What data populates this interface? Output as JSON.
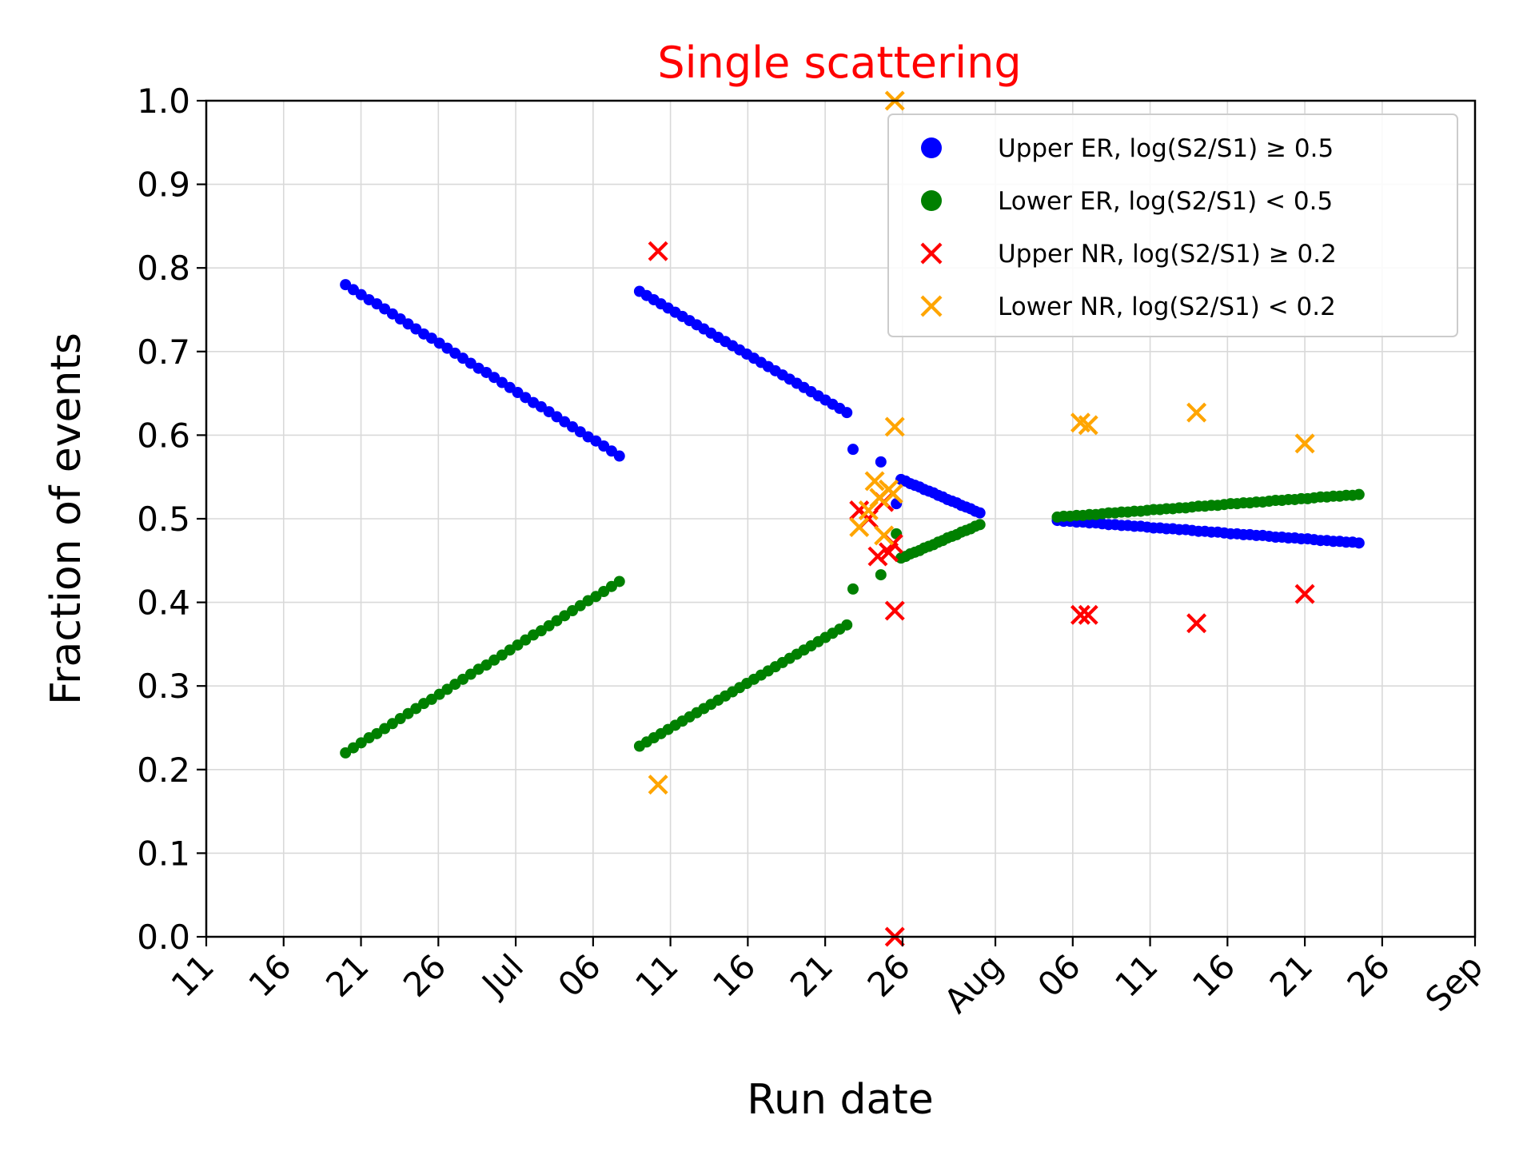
{
  "chart_data": {
    "type": "scatter",
    "title": "Single scattering",
    "title_color": "#ff0000",
    "xlabel": "Run date",
    "ylabel": "Fraction of events",
    "xlim": [
      "2025-06-11",
      "2025-09-01"
    ],
    "ylim": [
      0,
      1
    ],
    "grid": true,
    "legend_position": "top-right",
    "x_ticks": [
      {
        "date": "2025-06-11",
        "label": "11"
      },
      {
        "date": "2025-06-16",
        "label": "16"
      },
      {
        "date": "2025-06-21",
        "label": "21"
      },
      {
        "date": "2025-06-26",
        "label": "26"
      },
      {
        "date": "2025-07-01",
        "label": "Jul"
      },
      {
        "date": "2025-07-06",
        "label": "06"
      },
      {
        "date": "2025-07-11",
        "label": "11"
      },
      {
        "date": "2025-07-16",
        "label": "16"
      },
      {
        "date": "2025-07-21",
        "label": "21"
      },
      {
        "date": "2025-07-26",
        "label": "26"
      },
      {
        "date": "2025-08-01",
        "label": "Aug"
      },
      {
        "date": "2025-08-06",
        "label": "06"
      },
      {
        "date": "2025-08-11",
        "label": "11"
      },
      {
        "date": "2025-08-16",
        "label": "16"
      },
      {
        "date": "2025-08-21",
        "label": "21"
      },
      {
        "date": "2025-08-26",
        "label": "26"
      },
      {
        "date": "2025-09-01",
        "label": "Sep"
      }
    ],
    "y_ticks": [
      {
        "value": 0.0,
        "label": "0.0"
      },
      {
        "value": 0.1,
        "label": "0.1"
      },
      {
        "value": 0.2,
        "label": "0.2"
      },
      {
        "value": 0.3,
        "label": "0.3"
      },
      {
        "value": 0.4,
        "label": "0.4"
      },
      {
        "value": 0.5,
        "label": "0.5"
      },
      {
        "value": 0.6,
        "label": "0.6"
      },
      {
        "value": 0.7,
        "label": "0.7"
      },
      {
        "value": 0.8,
        "label": "0.8"
      },
      {
        "value": 0.9,
        "label": "0.9"
      },
      {
        "value": 1.0,
        "label": "1.0"
      }
    ],
    "segments": [
      {
        "series": "Upper ER, log(S2/S1) ≥ 0.5",
        "start": "2025-06-20",
        "end": "2025-07-07.7",
        "count": 36,
        "y_start": 0.78,
        "y_end": 0.575
      },
      {
        "series": "Lower ER, log(S2/S1) < 0.5",
        "start": "2025-06-20",
        "end": "2025-07-07.7",
        "count": 36,
        "y_start": 0.22,
        "y_end": 0.425
      },
      {
        "series": "Upper ER, log(S2/S1) ≥ 0.5",
        "start": "2025-07-09",
        "end": "2025-07-22.4",
        "count": 30,
        "y_start": 0.772,
        "y_end": 0.627
      },
      {
        "series": "Lower ER, log(S2/S1) < 0.5",
        "start": "2025-07-09",
        "end": "2025-07-22.4",
        "count": 30,
        "y_start": 0.228,
        "y_end": 0.373
      },
      {
        "series": "Upper ER, log(S2/S1) ≥ 0.5",
        "start": "2025-07-25.9",
        "end": "2025-07-31",
        "count": 18,
        "y_start": 0.547,
        "y_end": 0.507
      },
      {
        "series": "Lower ER, log(S2/S1) < 0.5",
        "start": "2025-07-25.9",
        "end": "2025-07-31",
        "count": 18,
        "y_start": 0.453,
        "y_end": 0.493
      },
      {
        "series": "Upper ER, log(S2/S1) ≥ 0.5",
        "start": "2025-08-05",
        "end": "2025-08-24.5",
        "count": 48,
        "y_start": 0.498,
        "y_end": 0.471
      },
      {
        "series": "Lower ER, log(S2/S1) < 0.5",
        "start": "2025-08-05",
        "end": "2025-08-24.5",
        "count": 48,
        "y_start": 0.502,
        "y_end": 0.529
      }
    ],
    "series": [
      {
        "name": "Upper ER, log(S2/S1) ≥ 0.5",
        "marker": "dot",
        "color": "#0000ff",
        "points": [
          {
            "x": "2025-07-22.8",
            "y": 0.583
          },
          {
            "x": "2025-07-24.6",
            "y": 0.568
          },
          {
            "x": "2025-07-25.6",
            "y": 0.518
          }
        ]
      },
      {
        "name": "Lower ER, log(S2/S1) < 0.5",
        "marker": "dot",
        "color": "#008000",
        "points": [
          {
            "x": "2025-07-22.8",
            "y": 0.416
          },
          {
            "x": "2025-07-24.6",
            "y": 0.433
          },
          {
            "x": "2025-07-25.6",
            "y": 0.482
          }
        ]
      },
      {
        "name": "Upper NR, log(S2/S1) ≥ 0.2",
        "marker": "x",
        "color": "#ff0000",
        "points": [
          {
            "x": "2025-07-10.2",
            "y": 0.82
          },
          {
            "x": "2025-07-23.2",
            "y": 0.51
          },
          {
            "x": "2025-07-23.8",
            "y": 0.5
          },
          {
            "x": "2025-07-24.4",
            "y": 0.455
          },
          {
            "x": "2025-07-24.8",
            "y": 0.52
          },
          {
            "x": "2025-07-25.1",
            "y": 0.46
          },
          {
            "x": "2025-07-25.4",
            "y": 0.47
          },
          {
            "x": "2025-07-25.5",
            "y": 0.39
          },
          {
            "x": "2025-07-25.5",
            "y": 0.0
          },
          {
            "x": "2025-08-06.5",
            "y": 0.385
          },
          {
            "x": "2025-08-07",
            "y": 0.385
          },
          {
            "x": "2025-08-14",
            "y": 0.375
          },
          {
            "x": "2025-08-21",
            "y": 0.41
          }
        ]
      },
      {
        "name": "Lower NR, log(S2/S1) < 0.2",
        "marker": "x",
        "color": "#ffa500",
        "points": [
          {
            "x": "2025-07-10.2",
            "y": 0.182
          },
          {
            "x": "2025-07-23.2",
            "y": 0.49
          },
          {
            "x": "2025-07-23.8",
            "y": 0.51
          },
          {
            "x": "2025-07-24.2",
            "y": 0.545
          },
          {
            "x": "2025-07-24.5",
            "y": 0.525
          },
          {
            "x": "2025-07-24.8",
            "y": 0.48
          },
          {
            "x": "2025-07-25.1",
            "y": 0.535
          },
          {
            "x": "2025-07-25.4",
            "y": 0.53
          },
          {
            "x": "2025-07-25.5",
            "y": 0.61
          },
          {
            "x": "2025-07-25.5",
            "y": 1.0
          },
          {
            "x": "2025-08-06.5",
            "y": 0.615
          },
          {
            "x": "2025-08-07",
            "y": 0.612
          },
          {
            "x": "2025-08-14",
            "y": 0.627
          },
          {
            "x": "2025-08-21",
            "y": 0.59
          }
        ]
      }
    ],
    "legend": [
      {
        "label": "Upper ER, log(S2/S1) ≥ 0.5",
        "marker": "dot",
        "color": "#0000ff"
      },
      {
        "label": "Lower ER, log(S2/S1) < 0.5",
        "marker": "dot",
        "color": "#008000"
      },
      {
        "label": "Upper NR, log(S2/S1) ≥ 0.2",
        "marker": "x",
        "color": "#ff0000"
      },
      {
        "label": "Lower NR, log(S2/S1) < 0.2",
        "marker": "x",
        "color": "#ffa500"
      }
    ]
  }
}
